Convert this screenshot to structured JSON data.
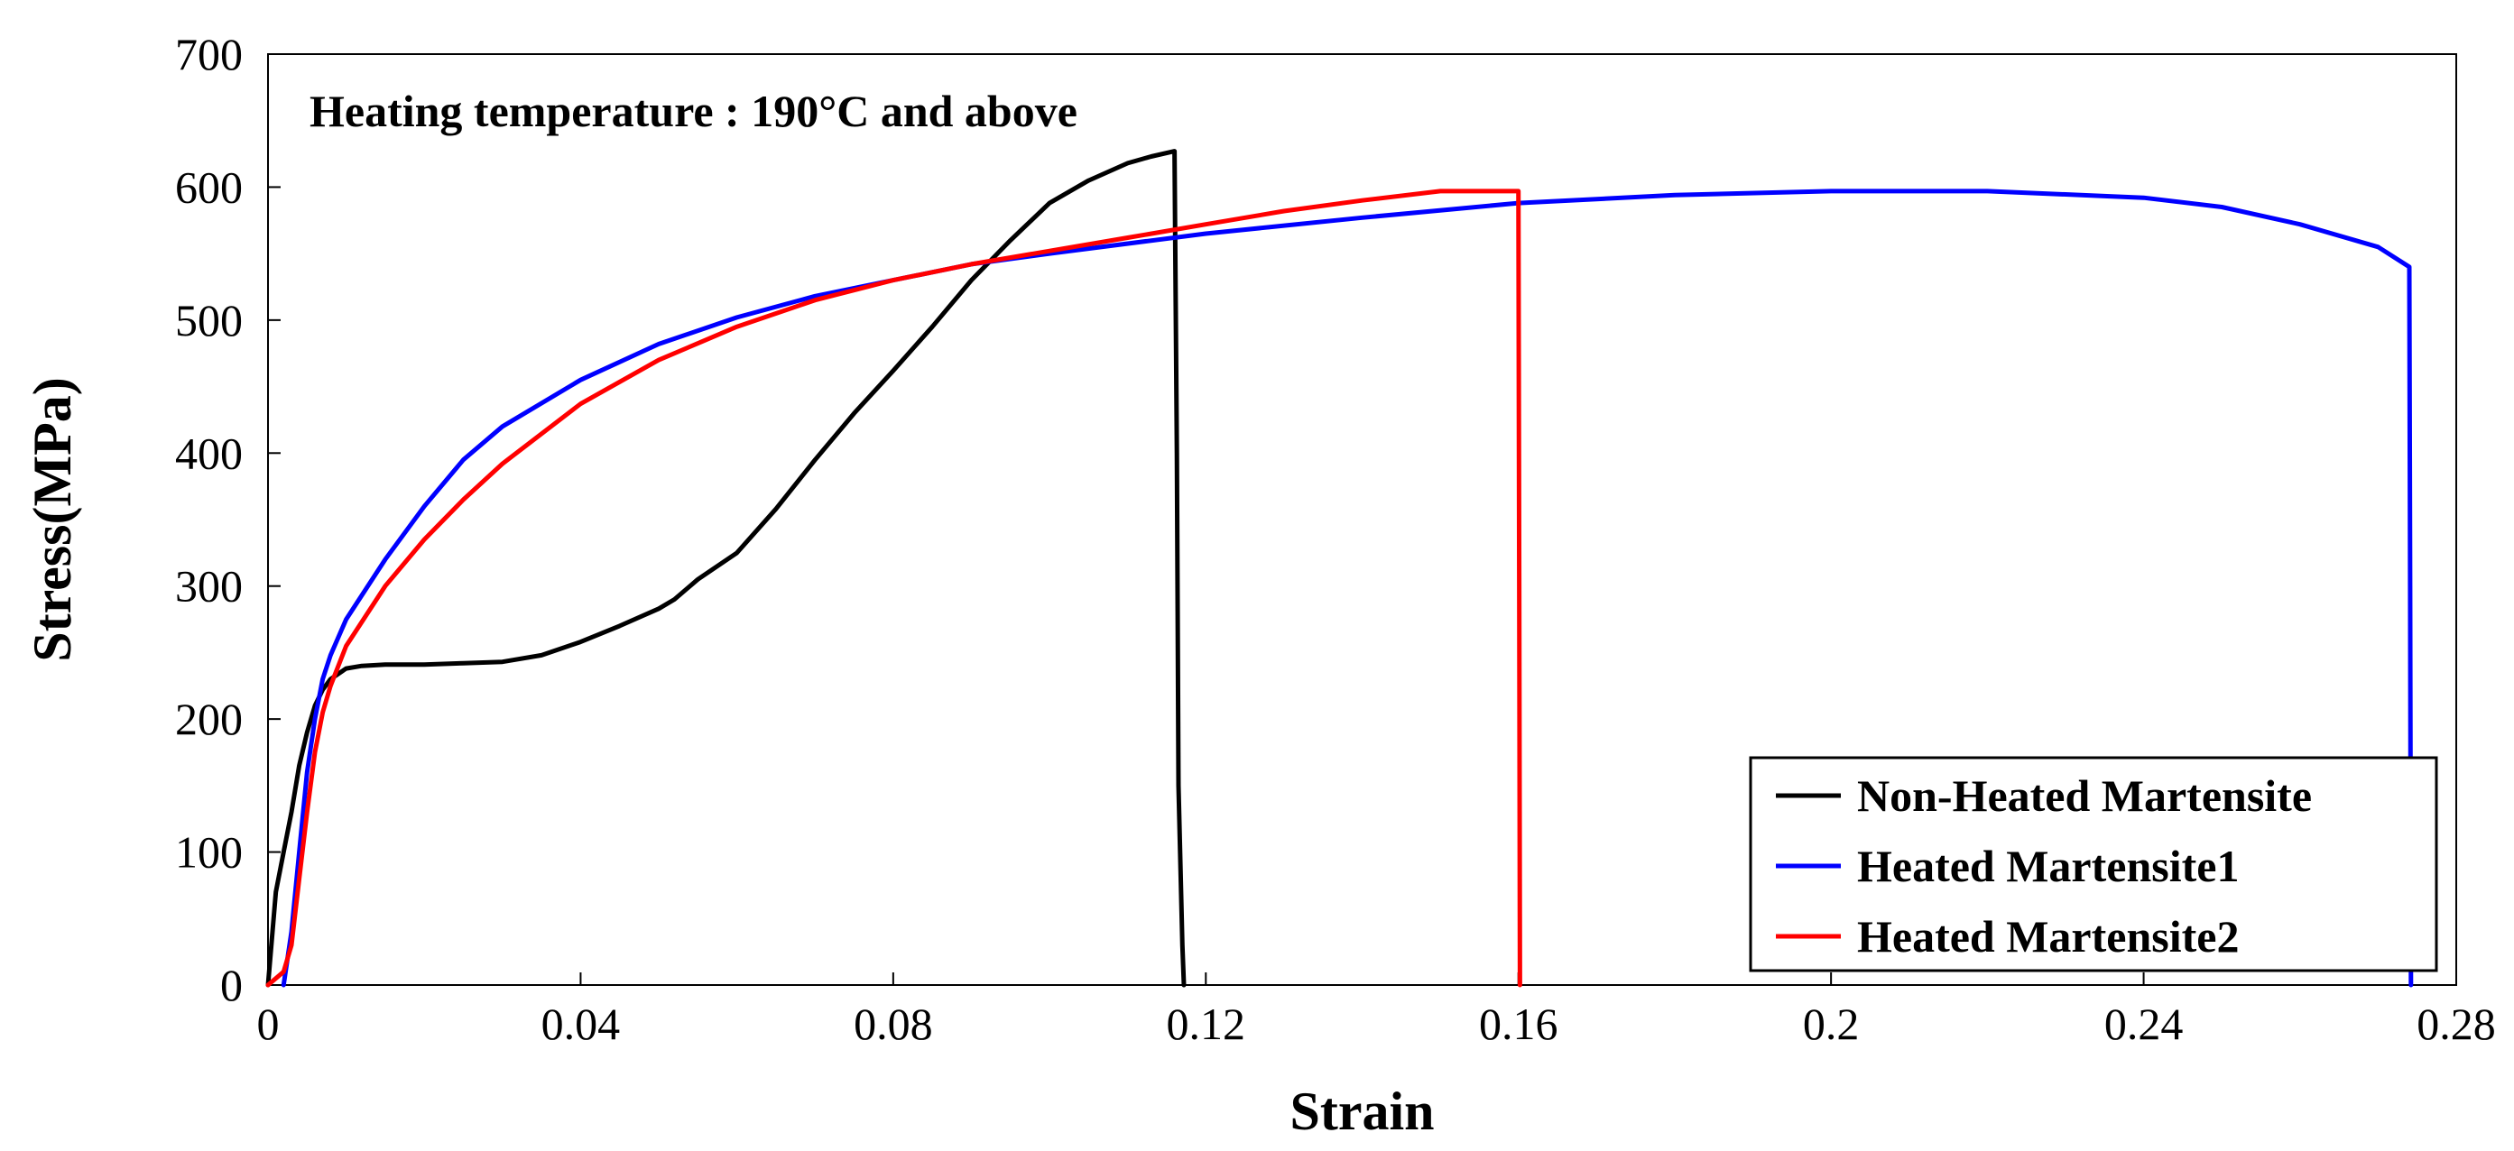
{
  "chart_data": {
    "type": "line",
    "title": "",
    "annotation": "Heating temperature : 190°C and above",
    "xlabel": "Strain",
    "ylabel": "Stress(MPa)",
    "xlim": [
      0,
      0.28
    ],
    "ylim": [
      0,
      700
    ],
    "xticks": [
      0,
      0.04,
      0.08,
      0.12,
      0.16,
      0.2,
      0.24,
      0.28
    ],
    "xtick_labels": [
      "0",
      "0.04",
      "0.08",
      "0.12",
      "0.16",
      "0.2",
      "0.24",
      "0.28"
    ],
    "yticks": [
      0,
      100,
      200,
      300,
      400,
      500,
      600,
      700
    ],
    "ytick_labels": [
      "0",
      "100",
      "200",
      "300",
      "400",
      "500",
      "600",
      "700"
    ],
    "grid": false,
    "legend_position": "bottom-right",
    "series": [
      {
        "name": "Non-Heated Martensite",
        "color": "#000000",
        "x": [
          0,
          0.001,
          0.002,
          0.003,
          0.004,
          0.005,
          0.006,
          0.007,
          0.008,
          0.01,
          0.012,
          0.015,
          0.02,
          0.025,
          0.03,
          0.035,
          0.04,
          0.045,
          0.05,
          0.052,
          0.055,
          0.06,
          0.065,
          0.07,
          0.075,
          0.08,
          0.085,
          0.09,
          0.095,
          0.1,
          0.105,
          0.11,
          0.113,
          0.116,
          0.1163,
          0.1165,
          0.117,
          0.1172
        ],
        "y": [
          0,
          70,
          100,
          130,
          165,
          190,
          210,
          222,
          230,
          238,
          240,
          241,
          241,
          242,
          243,
          248,
          258,
          270,
          283,
          290,
          305,
          325,
          358,
          395,
          430,
          462,
          495,
          530,
          560,
          588,
          605,
          618,
          623,
          627,
          400,
          150,
          30,
          0
        ]
      },
      {
        "name": "Heated Martensite1",
        "color": "#0000ff",
        "x": [
          0.002,
          0.003,
          0.004,
          0.005,
          0.006,
          0.007,
          0.008,
          0.01,
          0.015,
          0.02,
          0.025,
          0.03,
          0.04,
          0.05,
          0.06,
          0.07,
          0.08,
          0.09,
          0.1,
          0.12,
          0.14,
          0.16,
          0.18,
          0.2,
          0.22,
          0.24,
          0.25,
          0.26,
          0.27,
          0.274,
          0.2741,
          0.2742
        ],
        "y": [
          0,
          40,
          100,
          160,
          200,
          230,
          248,
          275,
          320,
          360,
          395,
          420,
          455,
          482,
          502,
          518,
          530,
          542,
          550,
          565,
          577,
          588,
          594,
          597,
          597,
          592,
          585,
          572,
          555,
          540,
          300,
          0
        ]
      },
      {
        "name": "Heated Martensite2",
        "color": "#ff0000",
        "x": [
          0,
          0.002,
          0.003,
          0.004,
          0.005,
          0.006,
          0.007,
          0.008,
          0.01,
          0.015,
          0.02,
          0.025,
          0.03,
          0.04,
          0.05,
          0.06,
          0.07,
          0.08,
          0.09,
          0.1,
          0.11,
          0.12,
          0.13,
          0.14,
          0.15,
          0.16,
          0.1601,
          0.1602
        ],
        "y": [
          0,
          10,
          30,
          80,
          130,
          175,
          205,
          225,
          255,
          300,
          335,
          365,
          392,
          437,
          470,
          495,
          515,
          530,
          542,
          552,
          562,
          572,
          582,
          590,
          597,
          597,
          300,
          0
        ]
      }
    ]
  }
}
